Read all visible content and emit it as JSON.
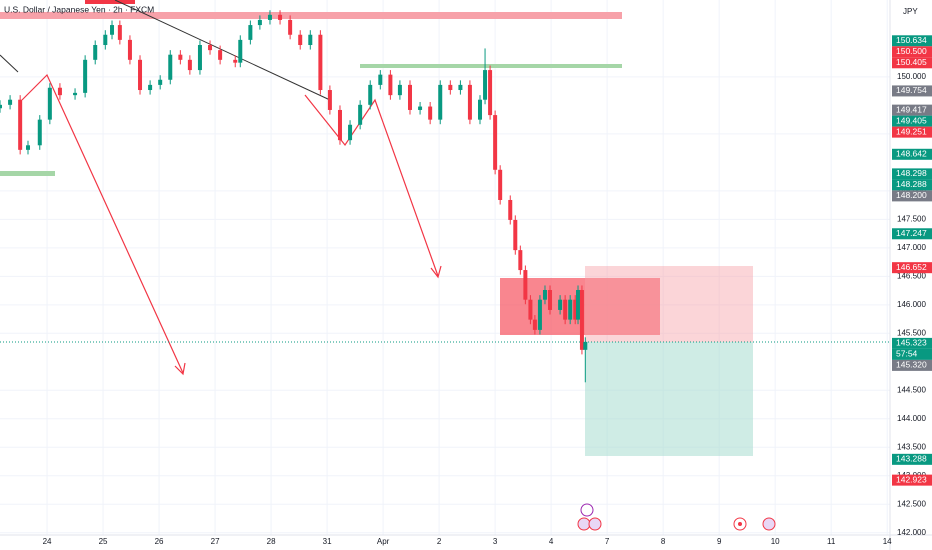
{
  "chart_data": {
    "type": "candlestick",
    "title": "U.S. Dollar / Japanese Yen · 2h · FXCM",
    "currency": "JPY",
    "up_color": "#089981",
    "down_color": "#f23645",
    "xlim": [
      -0.84,
      15.05
    ],
    "ylim": [
      141.96,
      151.35
    ],
    "xticks": [
      {
        "value": 0,
        "label": "24"
      },
      {
        "value": 1,
        "label": "25"
      },
      {
        "value": 2,
        "label": "26"
      },
      {
        "value": 3,
        "label": "27"
      },
      {
        "value": 4,
        "label": "28"
      },
      {
        "value": 5,
        "label": "31"
      },
      {
        "value": 6,
        "label": "Apr"
      },
      {
        "value": 7,
        "label": "2"
      },
      {
        "value": 8,
        "label": "3"
      },
      {
        "value": 9,
        "label": "4"
      },
      {
        "value": 10,
        "label": "7"
      },
      {
        "value": 11,
        "label": "8"
      },
      {
        "value": 12,
        "label": "9"
      },
      {
        "value": 13,
        "label": "10"
      },
      {
        "value": 14,
        "label": "11"
      },
      {
        "value": 15,
        "label": "14"
      }
    ],
    "yticks": [
      {
        "value": 150,
        "label": "150.000"
      },
      {
        "value": 149,
        "label": "149.000"
      },
      {
        "value": 148,
        "label": "148.000"
      },
      {
        "value": 147.5,
        "label": "147.500"
      },
      {
        "value": 147,
        "label": "147.000"
      },
      {
        "value": 146.5,
        "label": "146.500"
      },
      {
        "value": 146,
        "label": "146.000"
      },
      {
        "value": 145.5,
        "label": "145.500"
      },
      {
        "value": 144.5,
        "label": "144.500"
      },
      {
        "value": 144,
        "label": "144.000"
      },
      {
        "value": 143.5,
        "label": "143.500"
      },
      {
        "value": 143,
        "label": "143.000"
      },
      {
        "value": 142.5,
        "label": "142.500"
      },
      {
        "value": 142,
        "label": "142.000"
      }
    ],
    "grid": true,
    "last_price": 145.323,
    "countdown": "57:54",
    "price_tags": [
      {
        "value": 150.634,
        "color": "#089981"
      },
      {
        "value": 150.5,
        "label": "150.500",
        "color": "#f23645"
      },
      {
        "value": 150.405,
        "color": "#f23645"
      },
      {
        "value": 149.754,
        "color": "#787b86"
      },
      {
        "value": 149.417,
        "color": "#787b86"
      },
      {
        "value": 149.405,
        "color": "#089981"
      },
      {
        "value": 149.251,
        "color": "#f23645"
      },
      {
        "value": 148.642,
        "color": "#089981"
      },
      {
        "value": 148.298,
        "color": "#089981"
      },
      {
        "value": 148.288,
        "color": "#089981"
      },
      {
        "value": 148.2,
        "label": "148.200",
        "color": "#787b86"
      },
      {
        "value": 147.247,
        "color": "#089981"
      },
      {
        "value": 146.652,
        "color": "#f23645"
      },
      {
        "value": 145.323,
        "color": "#089981"
      },
      {
        "value": 145.32,
        "label": "145.320",
        "color": "#787b86"
      },
      {
        "value": 143.288,
        "color": "#089981"
      },
      {
        "value": 142.923,
        "color": "#f23645"
      }
    ],
    "x": [
      -0.84,
      -0.66,
      -0.48,
      -0.34,
      -0.13,
      0.05,
      0.23,
      0.5,
      0.68,
      0.86,
      1.04,
      1.16,
      1.3,
      1.48,
      1.66,
      1.84,
      2.02,
      2.2,
      2.38,
      2.55,
      2.73,
      2.91,
      3.09,
      3.36,
      3.45,
      3.63,
      3.8,
      3.98,
      4.16,
      4.34,
      4.52,
      4.7,
      4.88,
      5.05,
      5.23,
      5.41,
      5.59,
      5.77,
      5.95,
      6.13,
      6.3,
      6.48,
      6.66,
      6.84,
      7.02,
      7.2,
      7.38,
      7.55,
      7.73,
      7.82,
      7.91,
      8.0,
      8.09,
      8.27,
      8.36,
      8.45,
      8.54,
      8.63,
      8.71,
      8.8,
      8.89,
      8.98,
      9.16,
      9.25,
      9.34,
      9.43,
      9.48,
      9.55,
      9.61
    ],
    "open": [
      149.45,
      149.51,
      149.6,
      148.72,
      148.8,
      149.25,
      149.81,
      149.68,
      149.72,
      150.3,
      150.56,
      150.74,
      150.91,
      150.65,
      150.3,
      149.77,
      149.86,
      149.95,
      150.39,
      150.3,
      150.12,
      150.56,
      150.47,
      150.3,
      150.25,
      150.65,
      150.91,
      151.0,
      151.09,
      151.0,
      150.74,
      150.56,
      150.74,
      149.77,
      149.42,
      148.89,
      149.16,
      149.51,
      149.86,
      150.04,
      149.68,
      149.86,
      149.42,
      149.48,
      149.25,
      149.86,
      149.77,
      149.86,
      149.25,
      149.6,
      150.12,
      149.33,
      148.37,
      147.84,
      147.49,
      146.96,
      146.61,
      146.09,
      145.74,
      145.56,
      146.09,
      146.26,
      145.91,
      146.09,
      145.74,
      146.09,
      145.74,
      146.26,
      145.21
    ],
    "high": [
      149.59,
      149.68,
      149.68,
      148.88,
      149.33,
      149.89,
      149.89,
      149.8,
      150.38,
      150.64,
      150.82,
      150.99,
      150.99,
      150.73,
      150.38,
      149.94,
      150.03,
      150.47,
      150.47,
      150.38,
      150.64,
      150.64,
      150.55,
      150.38,
      150.73,
      150.99,
      151.08,
      151.17,
      151.17,
      151.08,
      150.82,
      150.82,
      150.82,
      149.85,
      149.5,
      149.24,
      149.59,
      149.94,
      150.12,
      150.12,
      149.94,
      149.94,
      149.56,
      149.56,
      149.94,
      149.94,
      149.94,
      149.94,
      149.68,
      150.5,
      150.2,
      149.41,
      148.45,
      147.92,
      147.57,
      147.04,
      146.69,
      146.17,
      145.82,
      146.17,
      146.34,
      146.34,
      146.17,
      146.17,
      146.17,
      146.17,
      146.34,
      146.34,
      145.43
    ],
    "low": [
      149.37,
      149.43,
      148.64,
      148.64,
      148.72,
      149.17,
      149.6,
      149.6,
      149.64,
      150.22,
      150.48,
      150.66,
      150.57,
      150.22,
      149.69,
      149.69,
      149.78,
      149.87,
      150.22,
      150.04,
      150.04,
      150.39,
      150.22,
      150.17,
      150.17,
      150.57,
      150.83,
      150.92,
      150.92,
      150.66,
      150.48,
      150.48,
      149.69,
      149.34,
      148.81,
      148.81,
      149.08,
      149.43,
      149.78,
      149.6,
      149.6,
      149.34,
      149.34,
      149.17,
      149.17,
      149.69,
      149.69,
      149.17,
      149.17,
      149.52,
      149.25,
      148.29,
      147.76,
      147.41,
      146.88,
      146.53,
      146.01,
      145.66,
      145.48,
      145.48,
      146.01,
      145.83,
      145.83,
      145.66,
      145.66,
      145.66,
      145.66,
      145.13,
      144.64
    ],
    "close": [
      149.51,
      149.6,
      148.72,
      148.8,
      149.25,
      149.81,
      149.68,
      149.72,
      150.3,
      150.56,
      150.74,
      150.91,
      150.65,
      150.3,
      149.77,
      149.86,
      149.95,
      150.39,
      150.3,
      150.12,
      150.56,
      150.47,
      150.3,
      150.25,
      150.65,
      150.91,
      151.0,
      151.09,
      151.0,
      150.74,
      150.56,
      150.74,
      149.77,
      149.42,
      148.89,
      149.16,
      149.51,
      149.86,
      150.04,
      149.68,
      149.86,
      149.42,
      149.48,
      149.25,
      149.86,
      149.77,
      149.86,
      149.25,
      149.6,
      150.12,
      149.33,
      148.37,
      147.84,
      147.49,
      146.96,
      146.61,
      146.09,
      145.74,
      145.56,
      146.09,
      146.26,
      145.91,
      146.09,
      145.74,
      146.09,
      145.74,
      146.26,
      145.21,
      145.35
    ]
  }
}
